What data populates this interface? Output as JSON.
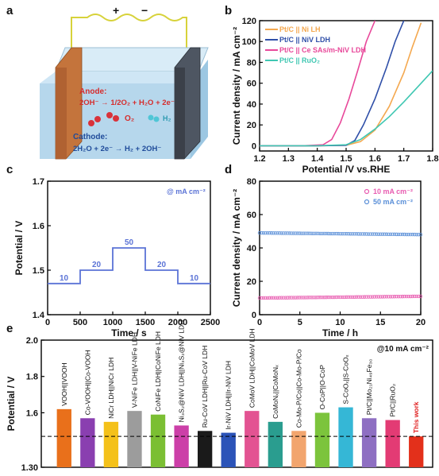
{
  "panels": {
    "a": {
      "label": "a",
      "terminals": {
        "plus": "+",
        "minus": "−"
      },
      "anode_label": "Anode:",
      "anode_eq": "2OH⁻ → 1/2O₂ + H₂O + 2e⁻",
      "o2_label": "O₂",
      "h2_label": "H₂",
      "cathode_label": "Cathode:",
      "cathode_eq": "2H₂O + 2e⁻ → H₂ + 2OH⁻"
    },
    "b": {
      "label": "b"
    },
    "c": {
      "label": "c"
    },
    "d": {
      "label": "d"
    },
    "e": {
      "label": "e"
    }
  },
  "colors": {
    "pt_ni": "#f4a84f",
    "pt_niv": "#2f4fa8",
    "pt_ce": "#e8489a",
    "pt_ruo2": "#3fc7b2",
    "step": "#5b73d6",
    "d_10": "#e85bb0",
    "d_50": "#5a8fd8",
    "bar_orange": "#e9701b",
    "bar_purple": "#8a3fb0",
    "bar_yellow": "#f4c11a",
    "bar_gray": "#9c9c9c",
    "bar_green": "#7bbf33",
    "bar_magenta": "#cc3fa8",
    "bar_black": "#1a1a1a",
    "bar_blue": "#2b53b8",
    "bar_pink": "#e35392",
    "bar_teal": "#2a9d8f",
    "bar_peach": "#f2a56e",
    "bar_lime": "#7cc43c",
    "bar_cyan": "#35b7d6",
    "bar_violet": "#8e6fc2",
    "bar_rose": "#e33b74",
    "bar_red": "#e3301b",
    "this_work": "#e02020"
  },
  "chart_data": [
    {
      "id": "b",
      "type": "line",
      "xlabel": "Potential /V vs.RHE",
      "ylabel": "Current density / mA cm⁻²",
      "xlim": [
        1.2,
        1.8
      ],
      "ylim": [
        -5,
        120
      ],
      "xticks": [
        1.2,
        1.3,
        1.4,
        1.5,
        1.6,
        1.7,
        1.8
      ],
      "yticks": [
        0,
        20,
        40,
        60,
        80,
        100,
        120
      ],
      "legend_position": "top-left",
      "series": [
        {
          "name": "Pt/C || Ni LH",
          "color_key": "pt_ni",
          "x": [
            1.2,
            1.4,
            1.5,
            1.55,
            1.6,
            1.65,
            1.7,
            1.73,
            1.76
          ],
          "y": [
            0,
            0,
            0.5,
            4,
            15,
            38,
            70,
            95,
            118
          ]
        },
        {
          "name": "Pt/C || NiV LDH",
          "color_key": "pt_niv",
          "x": [
            1.2,
            1.4,
            1.5,
            1.53,
            1.56,
            1.6,
            1.64,
            1.67,
            1.7
          ],
          "y": [
            0,
            0,
            0.5,
            5,
            20,
            45,
            75,
            100,
            120
          ]
        },
        {
          "name": "Pt/C || Ce SAs/m-NiV LDH",
          "color_key": "pt_ce",
          "x": [
            1.2,
            1.35,
            1.42,
            1.45,
            1.48,
            1.51,
            1.54,
            1.57,
            1.6
          ],
          "y": [
            0,
            0,
            1,
            6,
            22,
            45,
            72,
            100,
            120
          ]
        },
        {
          "name": "Pt/C || RuO₂",
          "color_key": "pt_ruo2",
          "x": [
            1.2,
            1.4,
            1.5,
            1.55,
            1.6,
            1.65,
            1.7,
            1.75,
            1.8
          ],
          "y": [
            0,
            0,
            1,
            6,
            16,
            28,
            42,
            57,
            72
          ]
        }
      ]
    },
    {
      "id": "c",
      "type": "line",
      "xlabel": "Time / s",
      "ylabel": "Potential / V",
      "annotation": "@ mA cm⁻²",
      "xlim": [
        0,
        2500
      ],
      "ylim": [
        1.4,
        1.7
      ],
      "xticks": [
        0,
        500,
        1000,
        1500,
        2000,
        2500
      ],
      "yticks": [
        1.4,
        1.5,
        1.6,
        1.7
      ],
      "x": [
        0,
        500,
        500,
        1000,
        1000,
        1500,
        1500,
        2000,
        2000,
        2500
      ],
      "y": [
        1.47,
        1.47,
        1.5,
        1.5,
        1.55,
        1.55,
        1.5,
        1.5,
        1.47,
        1.47
      ],
      "step_labels": [
        {
          "text": "10",
          "x": 250,
          "y": 1.47
        },
        {
          "text": "20",
          "x": 750,
          "y": 1.5
        },
        {
          "text": "50",
          "x": 1250,
          "y": 1.55
        },
        {
          "text": "20",
          "x": 1750,
          "y": 1.5
        },
        {
          "text": "10",
          "x": 2250,
          "y": 1.47
        }
      ]
    },
    {
      "id": "d",
      "type": "scatter",
      "xlabel": "Time / h",
      "ylabel": "Current density / mA cm⁻²",
      "xlim": [
        0,
        20
      ],
      "ylim": [
        0,
        80
      ],
      "xticks": [
        0,
        5,
        10,
        15,
        20
      ],
      "yticks": [
        0,
        20,
        40,
        60,
        80
      ],
      "legend_position": "top-right",
      "series": [
        {
          "name": "10 mA cm⁻²",
          "color_key": "d_10",
          "y_start": 10,
          "y_end": 11
        },
        {
          "name": "50 mA cm⁻²",
          "color_key": "d_50",
          "y_start": 49,
          "y_end": 48
        }
      ]
    },
    {
      "id": "e",
      "type": "bar",
      "ylabel": "Potential / V",
      "annotation": "@10 mA cm⁻²",
      "ylim": [
        1.3,
        2.0
      ],
      "yticks": [
        1.3,
        1.6,
        1.8,
        2.0
      ],
      "ytick_labels": [
        "1.30",
        "1.6",
        "1.8",
        "2.0"
      ],
      "reference_line": 1.47,
      "categories": [
        "VOOH||VOOH",
        "Co-VOOH||Co-VOOH",
        "NiCr LDH||NiCr LDH",
        "V-NiFe LDH||V-NiFe LDH",
        "CoNiFe LDH||CoNiFe LDH",
        "Ni₃S₂@NiV LDH||Ni₃S₂@NiV LDH",
        "Ru-CoV LDH||Ru-CoV LDH",
        "Ir-NiV LDH||Ir-NiV LDH",
        "CoMoV LDH||CoMoV LDH",
        "CoMoNₓ||CoMoNₓ",
        "Co-Mo-P/Co||Co-Mo-P/Co",
        "O-CoP||O-CoP",
        "S-CoOₓ||S-CoOₓ",
        "Pt/C||Mo₂₁Ni₄₉Fe₃₀",
        "Pt/C||RuO₂",
        "This work"
      ],
      "values": [
        1.62,
        1.57,
        1.55,
        1.61,
        1.59,
        1.53,
        1.5,
        1.49,
        1.61,
        1.55,
        1.5,
        1.6,
        1.63,
        1.57,
        1.56,
        1.47
      ],
      "color_keys": [
        "bar_orange",
        "bar_purple",
        "bar_yellow",
        "bar_gray",
        "bar_green",
        "bar_magenta",
        "bar_black",
        "bar_blue",
        "bar_pink",
        "bar_teal",
        "bar_peach",
        "bar_lime",
        "bar_cyan",
        "bar_violet",
        "bar_rose",
        "bar_red"
      ]
    }
  ]
}
